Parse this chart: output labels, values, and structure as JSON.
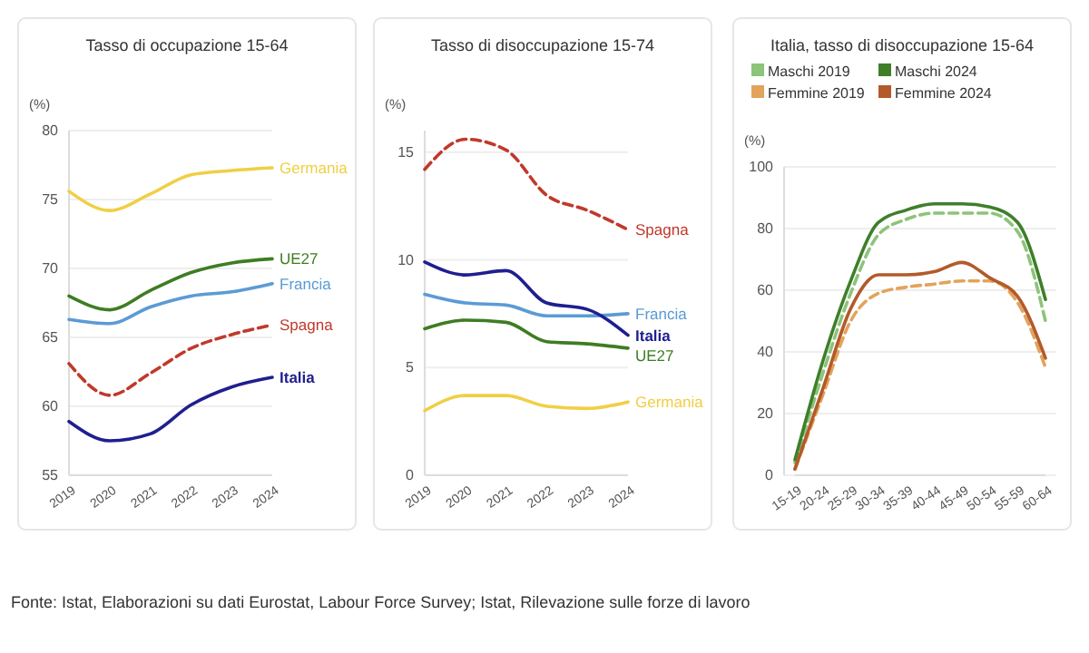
{
  "chart_data": [
    {
      "type": "line",
      "title": "Tasso di occupazione 15-64",
      "ylabel": "(%)",
      "x": [
        2019,
        2020,
        2021,
        2022,
        2023,
        2024
      ],
      "xlim": [
        2019,
        2024
      ],
      "xticks": [
        2019,
        2020,
        2021,
        2022,
        2023,
        2024
      ],
      "ylim": [
        55,
        80
      ],
      "yticks": [
        55,
        60,
        65,
        70,
        75,
        80
      ],
      "grid": "y",
      "legend": false,
      "series": [
        {
          "name": "Germania",
          "color": "#f0cf45",
          "values": [
            75.6,
            74.2,
            75.4,
            76.8,
            77.1,
            77.3
          ]
        },
        {
          "name": "UE27",
          "color": "#3e7d23",
          "values": [
            68.0,
            67.0,
            68.4,
            69.7,
            70.4,
            70.7
          ]
        },
        {
          "name": "Francia",
          "color": "#5b9bd5",
          "values": [
            66.3,
            66.0,
            67.2,
            68.0,
            68.3,
            68.9
          ]
        },
        {
          "name": "Spagna",
          "color": "#c0392b",
          "line_style": "dashed",
          "values": [
            63.1,
            60.8,
            62.4,
            64.2,
            65.2,
            65.9
          ]
        },
        {
          "name": "Italia",
          "color": "#1f1f8f",
          "values": [
            58.9,
            57.5,
            58.0,
            60.1,
            61.4,
            62.1
          ]
        }
      ]
    },
    {
      "type": "line",
      "title": "Tasso di disoccupazione 15-74",
      "ylabel": "(%)",
      "x": [
        2019,
        2020,
        2021,
        2022,
        2023,
        2024
      ],
      "xlim": [
        2019,
        2024
      ],
      "xticks": [
        2019,
        2020,
        2021,
        2022,
        2023,
        2024
      ],
      "ylim": [
        0,
        16
      ],
      "yticks": [
        0,
        5,
        10,
        15
      ],
      "grid": "y",
      "legend": false,
      "series": [
        {
          "name": "Spagna",
          "color": "#c0392b",
          "line_style": "dashed",
          "values": [
            14.2,
            15.6,
            15.1,
            13.0,
            12.3,
            11.4
          ]
        },
        {
          "name": "Francia",
          "color": "#5b9bd5",
          "values": [
            8.4,
            8.0,
            7.9,
            7.4,
            7.4,
            7.5
          ]
        },
        {
          "name": "Italia",
          "color": "#1f1f8f",
          "values": [
            9.9,
            9.3,
            9.5,
            8.0,
            7.7,
            6.5
          ]
        },
        {
          "name": "UE27",
          "color": "#3e7d23",
          "values": [
            6.8,
            7.2,
            7.1,
            6.2,
            6.1,
            5.9
          ]
        },
        {
          "name": "Germania",
          "color": "#f0cf45",
          "values": [
            3.0,
            3.7,
            3.7,
            3.2,
            3.1,
            3.4
          ]
        }
      ]
    },
    {
      "type": "line",
      "title": "Italia, tasso di disoccupazione 15-64",
      "ylabel": "(%)",
      "categories": [
        "15-19",
        "20-24",
        "25-29",
        "30-34",
        "35-39",
        "40-44",
        "45-49",
        "50-54",
        "55-59",
        "60-64"
      ],
      "ylim": [
        0,
        100
      ],
      "yticks": [
        0,
        20,
        40,
        60,
        80,
        100
      ],
      "grid": "y",
      "legend": "top",
      "series": [
        {
          "name": "Maschi 2019",
          "color": "#8cc47a",
          "line_style": "dashed",
          "values": [
            4,
            33,
            59,
            78,
            83,
            85,
            85,
            85,
            79,
            50
          ]
        },
        {
          "name": "Maschi 2024",
          "color": "#3f7f2a",
          "values": [
            5,
            37,
            63,
            82,
            86,
            88,
            88,
            87,
            82,
            57
          ]
        },
        {
          "name": "Femmine 2019",
          "color": "#e3a35b",
          "line_style": "dashed",
          "values": [
            2,
            26,
            50,
            59,
            61,
            62,
            63,
            63,
            56,
            35
          ]
        },
        {
          "name": "Femmine 2024",
          "color": "#b35a2a",
          "values": [
            2,
            28,
            54,
            65,
            65,
            66,
            69,
            64,
            58,
            38
          ]
        }
      ]
    },
    {
      "type": "other",
      "annotations": [
        "Fonte: Istat, Elaborazioni su dati Eurostat, Labour Force Survey; Istat, Rilevazione sulle forze di lavoro"
      ]
    }
  ]
}
